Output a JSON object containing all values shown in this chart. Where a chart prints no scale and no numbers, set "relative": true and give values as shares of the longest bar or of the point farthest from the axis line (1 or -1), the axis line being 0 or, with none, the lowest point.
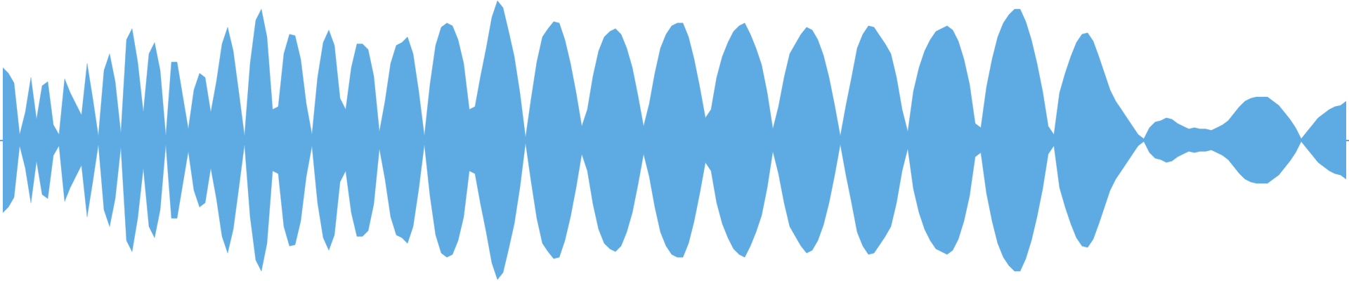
{
  "chart_data": {
    "type": "area",
    "relative": true,
    "categories": [
      null,
      null,
      null,
      null,
      null,
      null,
      null,
      null,
      null,
      null,
      null,
      null,
      null,
      null,
      null,
      null,
      null,
      null,
      null,
      null,
      null,
      null,
      null,
      null,
      null,
      null,
      null,
      null,
      null,
      null,
      null,
      null,
      null,
      null,
      null,
      null,
      null,
      null,
      null,
      null,
      null,
      null,
      null,
      null,
      null,
      null,
      null,
      null,
      null,
      null,
      null,
      null,
      null,
      null,
      null,
      null,
      null,
      null,
      null,
      null,
      null,
      null,
      null,
      null,
      null,
      null,
      null,
      null,
      null,
      null,
      null,
      null,
      null,
      null,
      null,
      null,
      null,
      null,
      null,
      null,
      null,
      null,
      null,
      null,
      null,
      null,
      null,
      null,
      null,
      null,
      null,
      null,
      null,
      null,
      null,
      null,
      null,
      null,
      null,
      null,
      null,
      null,
      null,
      null,
      null,
      null,
      null,
      null,
      null,
      null,
      null,
      null,
      null,
      null,
      null,
      null,
      null,
      null,
      null,
      null,
      null,
      null,
      null,
      null,
      null,
      null,
      null,
      null,
      null,
      null,
      null,
      null,
      null,
      null,
      null,
      null,
      null,
      null,
      null,
      null,
      null,
      null,
      null,
      null,
      null,
      null,
      null,
      null,
      null,
      null,
      null,
      null,
      null,
      null,
      null,
      null,
      null,
      null,
      null,
      null,
      null,
      null,
      null,
      null,
      null,
      null,
      null,
      null,
      null,
      null,
      null,
      null,
      null,
      null,
      null,
      null,
      null,
      null,
      null,
      null,
      null,
      null,
      null,
      null,
      null,
      null,
      null,
      null,
      null,
      null,
      null,
      null,
      null,
      null,
      null,
      null,
      null,
      null,
      null,
      null,
      null,
      null,
      null,
      null,
      null,
      null,
      null,
      null,
      null,
      null,
      null,
      null,
      null,
      null,
      null,
      null,
      null,
      null,
      null,
      null,
      null,
      null,
      null,
      null,
      null,
      null,
      null,
      null,
      null,
      null,
      null,
      null,
      null,
      null,
      null,
      null,
      null,
      null,
      null,
      null
    ],
    "series": [
      {
        "color": "#5dabe2",
        "values": [
          0.52,
          0.48,
          0.41,
          0.04,
          0.2,
          0.45,
          0.15,
          0.39,
          0.42,
          0.11,
          0.04,
          0.44,
          0.34,
          0.26,
          0.18,
          0.55,
          0.3,
          0.03,
          0.5,
          0.62,
          0.42,
          0.05,
          0.72,
          0.8,
          0.56,
          0.2,
          0.62,
          0.7,
          0.5,
          0.03,
          0.56,
          0.56,
          0.32,
          0.08,
          0.36,
          0.48,
          0.45,
          0.2,
          0.42,
          0.69,
          0.81,
          0.64,
          0.34,
          0.03,
          0.55,
          0.86,
          0.94,
          0.74,
          0.22,
          0.24,
          0.62,
          0.76,
          0.75,
          0.58,
          0.26,
          0.04,
          0.45,
          0.7,
          0.79,
          0.68,
          0.3,
          0.22,
          0.52,
          0.69,
          0.69,
          0.65,
          0.46,
          0.06,
          0.28,
          0.55,
          0.68,
          0.7,
          0.74,
          0.62,
          0.35,
          0.03,
          0.4,
          0.68,
          0.81,
          0.84,
          0.82,
          0.72,
          0.55,
          0.22,
          0.24,
          0.46,
          0.66,
          0.88,
          1.0,
          0.95,
          0.78,
          0.6,
          0.34,
          0.02,
          0.3,
          0.56,
          0.74,
          0.8,
          0.85,
          0.84,
          0.72,
          0.55,
          0.34,
          0.1,
          0.22,
          0.46,
          0.64,
          0.74,
          0.78,
          0.8,
          0.76,
          0.66,
          0.52,
          0.32,
          0.1,
          0.26,
          0.48,
          0.66,
          0.76,
          0.82,
          0.84,
          0.84,
          0.74,
          0.58,
          0.38,
          0.16,
          0.22,
          0.45,
          0.6,
          0.7,
          0.78,
          0.82,
          0.84,
          0.76,
          0.66,
          0.54,
          0.34,
          0.08,
          0.24,
          0.45,
          0.62,
          0.69,
          0.76,
          0.81,
          0.79,
          0.72,
          0.61,
          0.45,
          0.25,
          0.03,
          0.25,
          0.45,
          0.66,
          0.76,
          0.82,
          0.81,
          0.75,
          0.69,
          0.62,
          0.45,
          0.22,
          0.06,
          0.35,
          0.52,
          0.64,
          0.72,
          0.78,
          0.8,
          0.82,
          0.79,
          0.71,
          0.58,
          0.4,
          0.12,
          0.09,
          0.38,
          0.58,
          0.74,
          0.84,
          0.9,
          0.94,
          0.94,
          0.85,
          0.72,
          0.55,
          0.35,
          0.1,
          0.04,
          0.34,
          0.48,
          0.6,
          0.7,
          0.76,
          0.77,
          0.71,
          0.6,
          0.48,
          0.36,
          0.28,
          0.22,
          0.16,
          0.1,
          0.04,
          0.01,
          0.09,
          0.13,
          0.14,
          0.16,
          0.15,
          0.12,
          0.1,
          0.08,
          0.09,
          0.08,
          0.08,
          0.07,
          0.09,
          0.11,
          0.14,
          0.19,
          0.24,
          0.28,
          0.3,
          0.31,
          0.31,
          0.31,
          0.28,
          0.25,
          0.2,
          0.15,
          0.09,
          0.01,
          0.06,
          0.11,
          0.16,
          0.19,
          0.22,
          0.24,
          0.25,
          0.28
        ]
      },
      {
        "color": "#5dabe2",
        "values": [
          -0.52,
          -0.48,
          -0.41,
          -0.04,
          -0.2,
          -0.45,
          -0.15,
          -0.39,
          -0.42,
          -0.11,
          -0.04,
          -0.44,
          -0.34,
          -0.26,
          -0.18,
          -0.55,
          -0.3,
          -0.03,
          -0.5,
          -0.62,
          -0.42,
          -0.05,
          -0.72,
          -0.8,
          -0.56,
          -0.2,
          -0.62,
          -0.7,
          -0.5,
          -0.03,
          -0.56,
          -0.56,
          -0.32,
          -0.08,
          -0.36,
          -0.48,
          -0.45,
          -0.2,
          -0.42,
          -0.69,
          -0.81,
          -0.64,
          -0.34,
          -0.03,
          -0.55,
          -0.86,
          -0.94,
          -0.74,
          -0.22,
          -0.24,
          -0.62,
          -0.76,
          -0.75,
          -0.58,
          -0.26,
          -0.04,
          -0.45,
          -0.7,
          -0.79,
          -0.68,
          -0.3,
          -0.22,
          -0.52,
          -0.69,
          -0.69,
          -0.65,
          -0.46,
          -0.06,
          -0.28,
          -0.55,
          -0.68,
          -0.7,
          -0.74,
          -0.62,
          -0.35,
          -0.03,
          -0.4,
          -0.68,
          -0.81,
          -0.84,
          -0.82,
          -0.72,
          -0.55,
          -0.22,
          -0.24,
          -0.46,
          -0.66,
          -0.88,
          -1.0,
          -0.95,
          -0.78,
          -0.6,
          -0.34,
          -0.02,
          -0.3,
          -0.56,
          -0.74,
          -0.8,
          -0.85,
          -0.84,
          -0.72,
          -0.55,
          -0.34,
          -0.1,
          -0.22,
          -0.46,
          -0.64,
          -0.74,
          -0.78,
          -0.8,
          -0.76,
          -0.66,
          -0.52,
          -0.32,
          -0.1,
          -0.26,
          -0.48,
          -0.66,
          -0.76,
          -0.82,
          -0.84,
          -0.84,
          -0.74,
          -0.58,
          -0.38,
          -0.16,
          -0.22,
          -0.45,
          -0.6,
          -0.7,
          -0.78,
          -0.82,
          -0.84,
          -0.76,
          -0.66,
          -0.54,
          -0.34,
          -0.08,
          -0.24,
          -0.45,
          -0.62,
          -0.69,
          -0.76,
          -0.81,
          -0.79,
          -0.72,
          -0.61,
          -0.45,
          -0.25,
          -0.03,
          -0.25,
          -0.45,
          -0.66,
          -0.76,
          -0.82,
          -0.81,
          -0.75,
          -0.69,
          -0.62,
          -0.45,
          -0.22,
          -0.06,
          -0.35,
          -0.52,
          -0.64,
          -0.72,
          -0.78,
          -0.8,
          -0.82,
          -0.79,
          -0.71,
          -0.58,
          -0.4,
          -0.12,
          -0.09,
          -0.38,
          -0.58,
          -0.74,
          -0.84,
          -0.9,
          -0.94,
          -0.94,
          -0.85,
          -0.72,
          -0.55,
          -0.35,
          -0.1,
          -0.04,
          -0.34,
          -0.48,
          -0.6,
          -0.7,
          -0.76,
          -0.77,
          -0.71,
          -0.6,
          -0.48,
          -0.36,
          -0.28,
          -0.22,
          -0.16,
          -0.1,
          -0.04,
          -0.01,
          -0.09,
          -0.13,
          -0.14,
          -0.16,
          -0.15,
          -0.12,
          -0.1,
          -0.08,
          -0.09,
          -0.08,
          -0.08,
          -0.07,
          -0.09,
          -0.11,
          -0.14,
          -0.19,
          -0.24,
          -0.28,
          -0.3,
          -0.31,
          -0.31,
          -0.31,
          -0.28,
          -0.25,
          -0.2,
          -0.15,
          -0.09,
          -0.01,
          -0.06,
          -0.11,
          -0.16,
          -0.19,
          -0.22,
          -0.24,
          -0.25,
          -0.28
        ]
      }
    ],
    "ref_lines": [
      {
        "axis": "y",
        "value": 0,
        "color": "#5dabe2"
      }
    ]
  }
}
